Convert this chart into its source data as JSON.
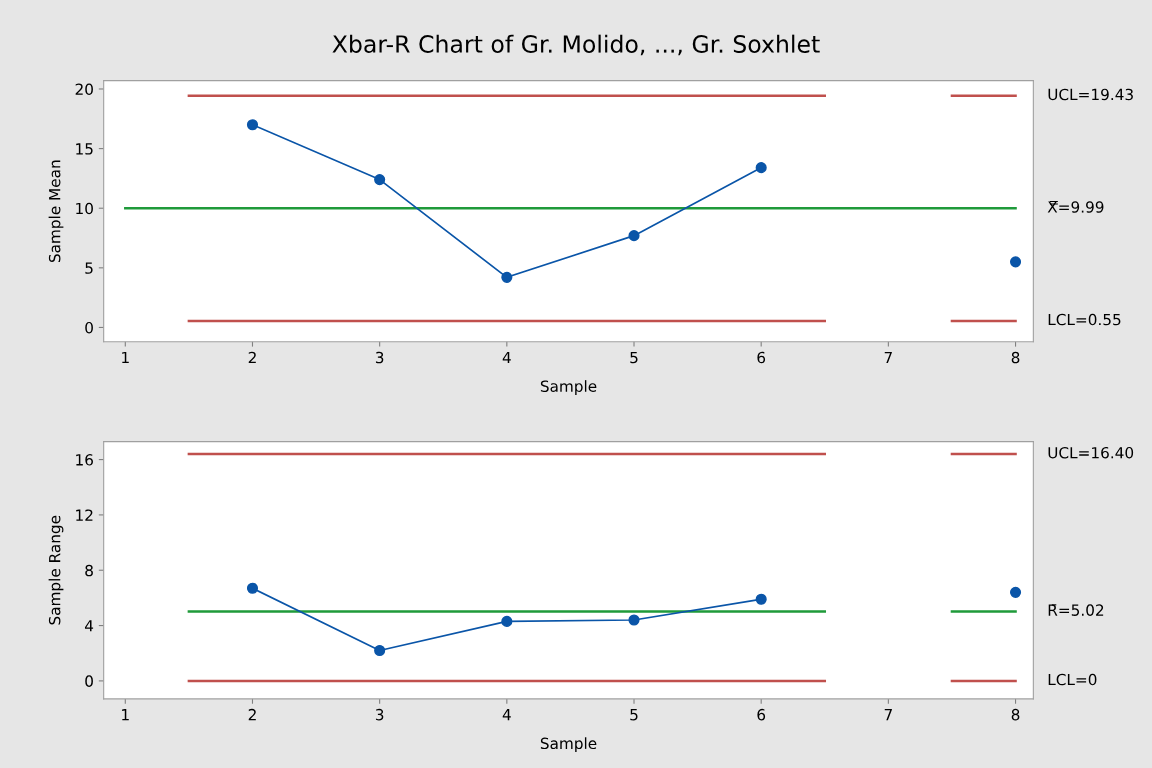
{
  "chart_data": [
    {
      "type": "line",
      "title": "Xbar-R Chart of Gr. Molido, ..., Gr. Soxhlet",
      "xlabel": "Sample",
      "ylabel": "Sample Mean",
      "xlim": [
        0.83,
        8.14
      ],
      "xticks": [
        1,
        2,
        3,
        4,
        5,
        6,
        7,
        8
      ],
      "ylim": [
        -1.2,
        20.7
      ],
      "yticks": [
        0,
        5,
        10,
        15,
        20
      ],
      "grid": false,
      "legend": false,
      "series": [
        {
          "name": "UCL=19.43",
          "color": "#c0504d",
          "marker": "none",
          "x": [
            1.5,
            6.5,
            7,
            7.5,
            8
          ],
          "values": [
            19.43,
            19.43,
            null,
            19.43,
            19.43
          ]
        },
        {
          "name": "X̿=9.99",
          "color": "#1f9a3a",
          "marker": "none",
          "x": [
            1,
            8
          ],
          "values": [
            9.99,
            9.99
          ]
        },
        {
          "name": "LCL=0.55",
          "color": "#c0504d",
          "marker": "none",
          "x": [
            1.5,
            6.5,
            7,
            7.5,
            8
          ],
          "values": [
            0.55,
            0.55,
            null,
            0.55,
            0.55
          ]
        },
        {
          "color": "#0a55a8",
          "marker": "circle",
          "x": [
            2,
            3,
            4,
            5,
            6,
            7,
            8
          ],
          "values": [
            17.0,
            12.4,
            4.2,
            7.7,
            13.4,
            null,
            5.5
          ]
        }
      ]
    },
    {
      "type": "line",
      "xlabel": "Sample",
      "ylabel": "Sample Range",
      "xlim": [
        0.83,
        8.14
      ],
      "xticks": [
        1,
        2,
        3,
        4,
        5,
        6,
        7,
        8
      ],
      "ylim": [
        -1.3,
        17.3
      ],
      "yticks": [
        0,
        4,
        8,
        12,
        16
      ],
      "grid": false,
      "legend": false,
      "series": [
        {
          "name": "UCL=16.40",
          "color": "#c0504d",
          "marker": "none",
          "x": [
            1.5,
            6.5,
            7,
            7.5,
            8
          ],
          "values": [
            16.4,
            16.4,
            null,
            16.4,
            16.4
          ]
        },
        {
          "name": "R̄=5.02",
          "color": "#1f9a3a",
          "marker": "none",
          "x": [
            1.5,
            6.5,
            7,
            7.5,
            8
          ],
          "values": [
            5.02,
            5.02,
            null,
            5.02,
            5.02
          ]
        },
        {
          "name": "LCL=0",
          "color": "#c0504d",
          "marker": "none",
          "x": [
            1.5,
            6.5,
            7,
            7.5,
            8
          ],
          "values": [
            0,
            0,
            null,
            0,
            0
          ]
        },
        {
          "color": "#0a55a8",
          "marker": "circle",
          "x": [
            2,
            3,
            4,
            5,
            6,
            7,
            8
          ],
          "values": [
            6.7,
            2.2,
            4.3,
            4.4,
            5.9,
            null,
            6.4
          ]
        }
      ]
    }
  ]
}
